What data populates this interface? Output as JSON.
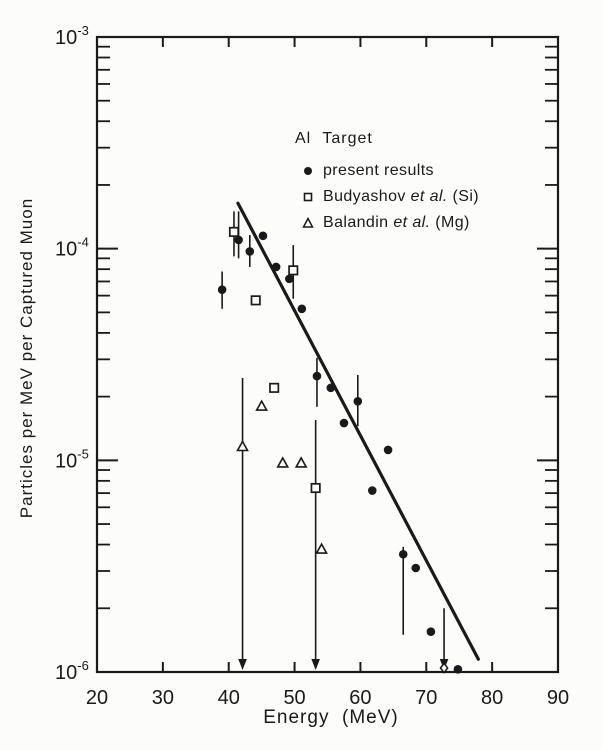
{
  "figure": {
    "background_color": "#fcfcfa",
    "ink_color": "#1a1a1a"
  },
  "chart_data": {
    "type": "scatter",
    "title": "Al Target",
    "xlabel": "Energy  (MeV)",
    "ylabel": "Particles per MeV per Captured Muon",
    "xlim": [
      20,
      90
    ],
    "x_ticks": [
      20,
      30,
      40,
      50,
      60,
      70,
      80,
      90
    ],
    "y_scale": "log",
    "y_top_exponent": -3,
    "y_decades": 3,
    "y_tick_base": "10",
    "y_tick_exponents": [
      -3,
      -4,
      -5,
      -6
    ],
    "grid": false,
    "legend": {
      "position": "upper-right-inside",
      "items": [
        {
          "marker": "filled-circle",
          "pre": "present results",
          "etal": "",
          "post": ""
        },
        {
          "marker": "open-square",
          "pre": "Budyashov ",
          "etal": "et al.",
          "post": " (Si)"
        },
        {
          "marker": "open-triangle",
          "pre": "Balandin ",
          "etal": "et al.",
          "post": " (Mg)"
        }
      ]
    },
    "series": [
      {
        "name": "present results",
        "marker": "filled-circle",
        "points": [
          {
            "x": 39.0,
            "y": 6.4e-05,
            "lo": 5.2e-05,
            "hi": 7.8e-05
          },
          {
            "x": 41.5,
            "y": 0.00011,
            "lo": 9e-05,
            "hi": 0.00015
          },
          {
            "x": 43.2,
            "y": 9.7e-05,
            "lo": 8.2e-05,
            "hi": 0.000116
          },
          {
            "x": 45.2,
            "y": 0.000115
          },
          {
            "x": 47.2,
            "y": 8.2e-05
          },
          {
            "x": 49.2,
            "y": 7.2e-05
          },
          {
            "x": 51.1,
            "y": 5.2e-05
          },
          {
            "x": 53.4,
            "y": 2.5e-05,
            "lo": 1.79e-05,
            "hi": 3.05e-05
          },
          {
            "x": 55.5,
            "y": 2.2e-05
          },
          {
            "x": 57.5,
            "y": 1.5e-05
          },
          {
            "x": 59.6,
            "y": 1.9e-05,
            "lo": 1.45e-05,
            "hi": 2.53e-05
          },
          {
            "x": 61.8,
            "y": 7.2e-06
          },
          {
            "x": 64.2,
            "y": 1.12e-05
          },
          {
            "x": 66.5,
            "y": 3.6e-06,
            "lo": 1.5e-06,
            "hi": 3.9e-06
          },
          {
            "x": 68.4,
            "y": 3.1e-06
          },
          {
            "x": 70.7,
            "y": 1.55e-06
          },
          {
            "x": 74.8,
            "y": 1.03e-06
          }
        ]
      },
      {
        "name": "Budyashov et al. (Si)",
        "marker": "open-square",
        "points": [
          {
            "x": 40.8,
            "y": 0.00012,
            "lo": 9.2e-05,
            "hi": 0.00015
          },
          {
            "x": 44.1,
            "y": 5.7e-05
          },
          {
            "x": 46.9,
            "y": 2.2e-05
          },
          {
            "x": 49.8,
            "y": 7.9e-05,
            "lo": 5.8e-05,
            "hi": 0.000104
          },
          {
            "x": 53.2,
            "y": 7.4e-06,
            "limit_top": 1.55e-05,
            "arrow_to_axis": true
          }
        ]
      },
      {
        "name": "Balandin et al. (Mg)",
        "marker": "open-triangle",
        "points": [
          {
            "x": 42.1,
            "y": 1.16e-05,
            "limit_top": 2.45e-05,
            "arrow_to_axis": true
          },
          {
            "x": 45.0,
            "y": 1.8e-05
          },
          {
            "x": 48.2,
            "y": 9.7e-06
          },
          {
            "x": 51.0,
            "y": 9.7e-06
          },
          {
            "x": 54.1,
            "y": 3.8e-06
          }
        ]
      }
    ],
    "axis_limit_marker": {
      "x": 72.7,
      "top": 2e-06,
      "marker": "open-diamond"
    },
    "fit_line": {
      "x1": 41.4,
      "y1": 0.000164,
      "x2": 77.9,
      "y2": 1.15e-06
    }
  }
}
